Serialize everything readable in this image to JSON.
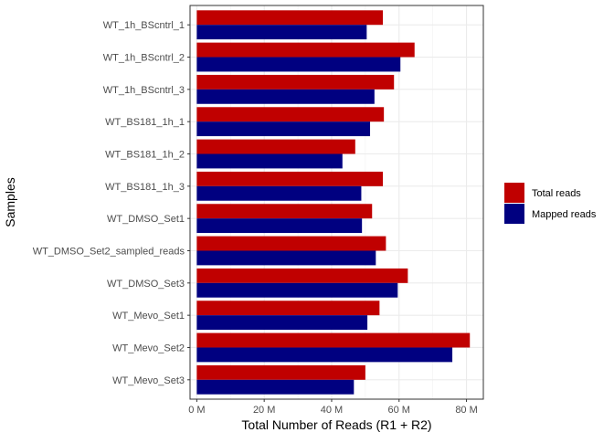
{
  "chart_data": {
    "type": "bar",
    "orientation": "horizontal",
    "title": "",
    "xlabel": "Total Number of Reads (R1 + R2)",
    "ylabel": "Samples",
    "xlim": [
      -2,
      85
    ],
    "xticks": [
      0,
      20,
      40,
      60,
      80
    ],
    "xtick_labels": [
      "0 M",
      "20 M",
      "40 M",
      "60 M",
      "80 M"
    ],
    "grid": true,
    "legend_position": "right",
    "categories": [
      "WT_1h_BScntrl_1",
      "WT_1h_BScntrl_2",
      "WT_1h_BScntrl_3",
      "WT_BS181_1h_1",
      "WT_BS181_1h_2",
      "WT_BS181_1h_3",
      "WT_DMSO_Set1",
      "WT_DMSO_Set2_sampled_reads",
      "WT_DMSO_Set3",
      "WT_Mevo_Set1",
      "WT_Mevo_Set2",
      "WT_Mevo_Set3"
    ],
    "series": [
      {
        "name": "Total reads",
        "color": "#c00000",
        "values": [
          55.2,
          64.6,
          58.5,
          55.5,
          47.0,
          55.2,
          52.0,
          56.1,
          62.6,
          54.2,
          81.0,
          50.0
        ]
      },
      {
        "name": "Mapped reads",
        "color": "#000080",
        "values": [
          50.4,
          60.4,
          52.7,
          51.4,
          43.2,
          48.8,
          49.0,
          53.1,
          59.6,
          50.6,
          75.8,
          46.6
        ]
      }
    ]
  }
}
